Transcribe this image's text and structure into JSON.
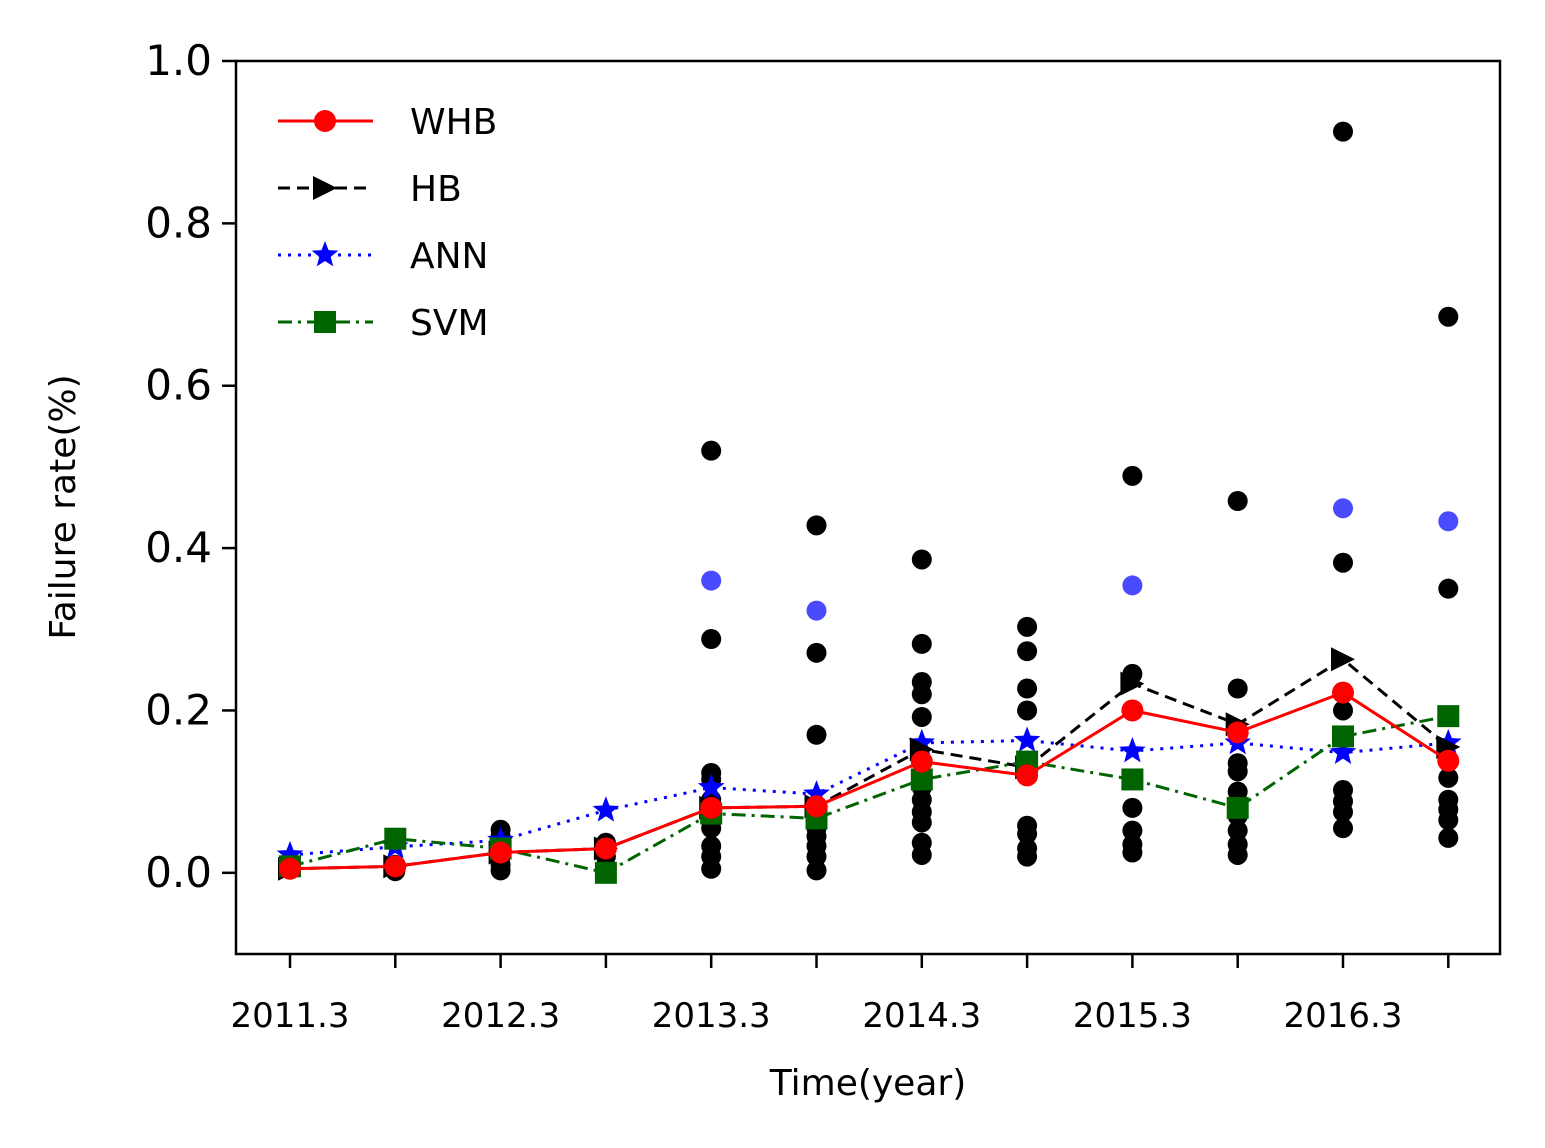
{
  "chart_data": {
    "type": "line",
    "xlabel": "Time(year)",
    "ylabel": "Failure rate(%)",
    "ylim": [
      -0.1,
      1.0
    ],
    "yticks": [
      0.0,
      0.2,
      0.4,
      0.6,
      0.8,
      1.0
    ],
    "ytick_labels": [
      "0.0",
      "0.2",
      "0.4",
      "0.6",
      "0.8",
      "1.0"
    ],
    "x_tick_labels": [
      "2011.3",
      "",
      "2012.3",
      "",
      "2013.3",
      "",
      "2014.3",
      "",
      "2015.3",
      "",
      "2016.3",
      ""
    ],
    "legend_position": "top-left",
    "grid": false,
    "series": [
      {
        "name": "WHB",
        "color": "#ff0000",
        "marker": "circle",
        "linestyle": "solid",
        "values": [
          0.005,
          0.008,
          0.025,
          0.03,
          0.08,
          0.082,
          0.137,
          0.12,
          0.2,
          0.173,
          0.222,
          0.138
        ]
      },
      {
        "name": "HB",
        "color": "#000000",
        "marker": "triangle-right",
        "linestyle": "dashed",
        "values": [
          0.005,
          0.008,
          0.025,
          0.03,
          0.08,
          0.082,
          0.152,
          0.13,
          0.233,
          0.183,
          0.263,
          0.155
        ]
      },
      {
        "name": "ANN",
        "color": "#0000ff",
        "marker": "star",
        "linestyle": "dotted",
        "values": [
          0.022,
          0.032,
          0.04,
          0.077,
          0.105,
          0.097,
          0.16,
          0.163,
          0.15,
          0.16,
          0.148,
          0.16
        ]
      },
      {
        "name": "SVM",
        "color": "#006400",
        "marker": "square",
        "linestyle": "dashdot",
        "values": [
          0.008,
          0.042,
          0.03,
          0.0,
          0.073,
          0.067,
          0.115,
          0.137,
          0.115,
          0.08,
          0.168,
          0.193
        ]
      }
    ],
    "scatter_black": {
      "color": "#000000",
      "points": [
        [
          0,
          0.005
        ],
        [
          0,
          0.008
        ],
        [
          0,
          0.012
        ],
        [
          1,
          0.002
        ],
        [
          1,
          0.006
        ],
        [
          1,
          0.01
        ],
        [
          2,
          0.003
        ],
        [
          2,
          0.01
        ],
        [
          2,
          0.02
        ],
        [
          2,
          0.03
        ],
        [
          2,
          0.045
        ],
        [
          2,
          0.053
        ],
        [
          3,
          0.02
        ],
        [
          3,
          0.033
        ],
        [
          3,
          0.037
        ],
        [
          4,
          0.005
        ],
        [
          4,
          0.02
        ],
        [
          4,
          0.033
        ],
        [
          4,
          0.055
        ],
        [
          4,
          0.07
        ],
        [
          4,
          0.09
        ],
        [
          4,
          0.115
        ],
        [
          4,
          0.123
        ],
        [
          4,
          0.288
        ],
        [
          4,
          0.52
        ],
        [
          5,
          0.003
        ],
        [
          5,
          0.02
        ],
        [
          5,
          0.033
        ],
        [
          5,
          0.045
        ],
        [
          5,
          0.055
        ],
        [
          5,
          0.065
        ],
        [
          5,
          0.17
        ],
        [
          5,
          0.271
        ],
        [
          5,
          0.428
        ],
        [
          6,
          0.022
        ],
        [
          6,
          0.037
        ],
        [
          6,
          0.062
        ],
        [
          6,
          0.075
        ],
        [
          6,
          0.09
        ],
        [
          6,
          0.105
        ],
        [
          6,
          0.12
        ],
        [
          6,
          0.192
        ],
        [
          6,
          0.22
        ],
        [
          6,
          0.235
        ],
        [
          6,
          0.282
        ],
        [
          6,
          0.386
        ],
        [
          7,
          0.02
        ],
        [
          7,
          0.03
        ],
        [
          7,
          0.048
        ],
        [
          7,
          0.058
        ],
        [
          7,
          0.2
        ],
        [
          7,
          0.227
        ],
        [
          7,
          0.273
        ],
        [
          7,
          0.303
        ],
        [
          8,
          0.025
        ],
        [
          8,
          0.035
        ],
        [
          8,
          0.052
        ],
        [
          8,
          0.08
        ],
        [
          8,
          0.245
        ],
        [
          8,
          0.489
        ],
        [
          9,
          0.022
        ],
        [
          9,
          0.035
        ],
        [
          9,
          0.052
        ],
        [
          9,
          0.07
        ],
        [
          9,
          0.1
        ],
        [
          9,
          0.125
        ],
        [
          9,
          0.135
        ],
        [
          9,
          0.227
        ],
        [
          9,
          0.458
        ],
        [
          10,
          0.055
        ],
        [
          10,
          0.075
        ],
        [
          10,
          0.088
        ],
        [
          10,
          0.102
        ],
        [
          10,
          0.2
        ],
        [
          10,
          0.382
        ],
        [
          10,
          0.913
        ],
        [
          11,
          0.043
        ],
        [
          11,
          0.065
        ],
        [
          11,
          0.078
        ],
        [
          11,
          0.09
        ],
        [
          11,
          0.117
        ],
        [
          11,
          0.35
        ],
        [
          11,
          0.685
        ]
      ]
    },
    "scatter_blue": {
      "color": "#2a2aff",
      "points": [
        [
          4,
          0.36
        ],
        [
          5,
          0.323
        ],
        [
          8,
          0.354
        ],
        [
          10,
          0.449
        ],
        [
          11,
          0.433
        ]
      ]
    }
  }
}
